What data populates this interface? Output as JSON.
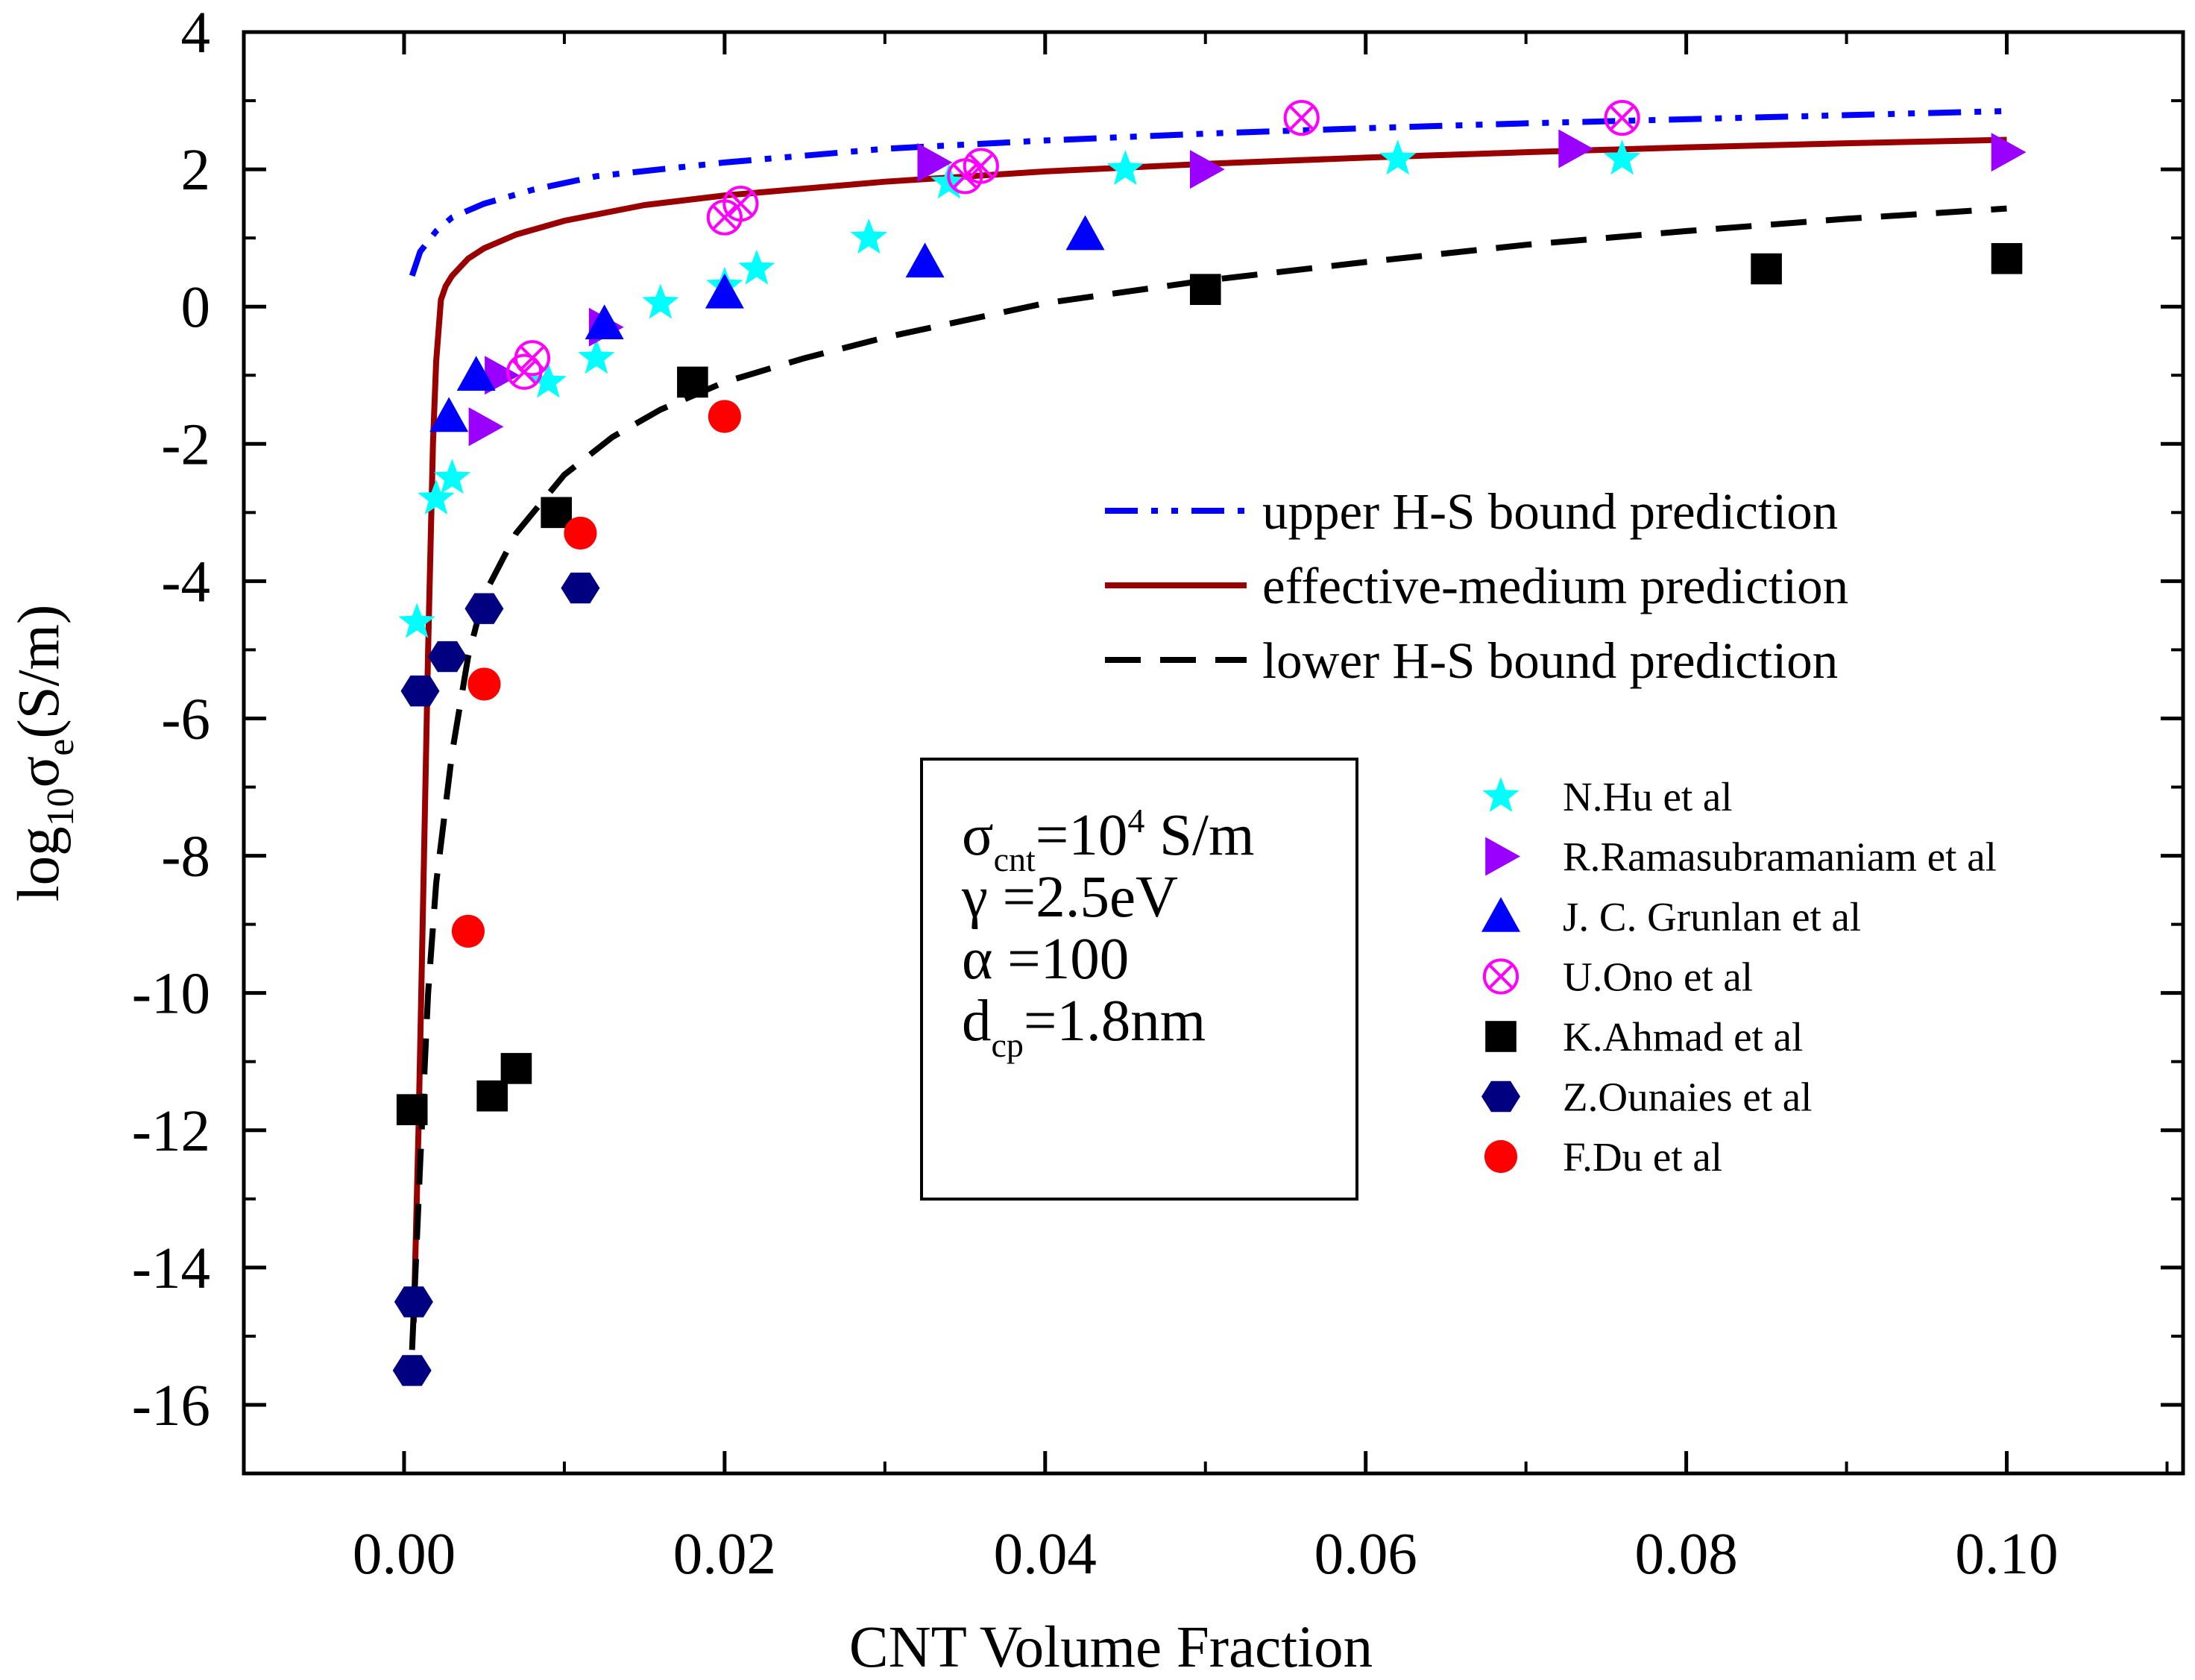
{
  "chart_data": {
    "type": "scatter",
    "xlabel": "CNT Volume Fraction",
    "ylabel_parts": {
      "base": "log",
      "base_sub": "10",
      "sym": "σ",
      "sym_sub": "e",
      "unit": "(S/m)"
    },
    "xlim": [
      -0.01,
      0.111
    ],
    "ylim": [
      -17,
      4
    ],
    "x_ticks": [
      0.0,
      0.02,
      0.04,
      0.06,
      0.08,
      0.1
    ],
    "x_tick_labels": [
      "0.00",
      "0.02",
      "0.04",
      "0.06",
      "0.08",
      "0.10"
    ],
    "y_ticks": [
      -16,
      -14,
      -12,
      -10,
      -8,
      -6,
      -4,
      -2,
      0,
      2,
      4
    ],
    "y_tick_labels": [
      "-16",
      "-14",
      "-12",
      "-10",
      "-8",
      "-6",
      "-4",
      "-2",
      "0",
      "2",
      "4"
    ],
    "lines": [
      {
        "name": "upper H-S bound prediction",
        "color": "#0000ff",
        "style": "dashdotdot",
        "x": [
          0.0005,
          0.001,
          0.002,
          0.003,
          0.005,
          0.008,
          0.012,
          0.02,
          0.03,
          0.04,
          0.05,
          0.06,
          0.07,
          0.08,
          0.09,
          0.1
        ],
        "y": [
          0.45,
          0.8,
          1.1,
          1.3,
          1.5,
          1.7,
          1.9,
          2.1,
          2.3,
          2.42,
          2.52,
          2.6,
          2.67,
          2.73,
          2.79,
          2.85
        ]
      },
      {
        "name": "effective-medium prediction",
        "color": "#990000",
        "style": "solid",
        "x": [
          0.0006,
          0.0009,
          0.0012,
          0.0015,
          0.0018,
          0.002,
          0.0023,
          0.0026,
          0.003,
          0.004,
          0.005,
          0.007,
          0.01,
          0.015,
          0.02,
          0.03,
          0.04,
          0.05,
          0.06,
          0.07,
          0.08,
          0.09,
          0.1
        ],
        "y": [
          -14.8,
          -12.0,
          -8.5,
          -5.0,
          -2.0,
          -0.8,
          0.1,
          0.3,
          0.45,
          0.7,
          0.85,
          1.05,
          1.25,
          1.48,
          1.62,
          1.82,
          1.97,
          2.08,
          2.17,
          2.25,
          2.32,
          2.38,
          2.43
        ]
      },
      {
        "name": "lower H-S bound prediction",
        "color": "#000000",
        "style": "dashed",
        "x": [
          0.0005,
          0.001,
          0.0015,
          0.002,
          0.003,
          0.004,
          0.005,
          0.007,
          0.01,
          0.013,
          0.016,
          0.02,
          0.025,
          0.03,
          0.04,
          0.05,
          0.06,
          0.07,
          0.08,
          0.09,
          0.1
        ],
        "y": [
          -15.2,
          -12.5,
          -10.0,
          -8.4,
          -6.5,
          -5.1,
          -4.2,
          -3.3,
          -2.45,
          -1.9,
          -1.5,
          -1.1,
          -0.75,
          -0.45,
          0.05,
          0.38,
          0.65,
          0.9,
          1.1,
          1.28,
          1.43
        ]
      }
    ],
    "series": [
      {
        "name": "N.Hu et al",
        "marker": "star",
        "color": "#00ffff",
        "x": [
          0.0008,
          0.002,
          0.003,
          0.009,
          0.012,
          0.016,
          0.02,
          0.022,
          0.029,
          0.034,
          0.045,
          0.062,
          0.076
        ],
        "y": [
          -4.6,
          -2.8,
          -2.5,
          -1.1,
          -0.75,
          0.05,
          0.3,
          0.55,
          1.0,
          1.8,
          2.0,
          2.15,
          2.15
        ]
      },
      {
        "name": "R.Ramasubramaniam et al",
        "marker": "triangle-right",
        "color": "#9900ff",
        "x": [
          0.005,
          0.006,
          0.0125,
          0.033,
          0.05,
          0.073,
          0.1
        ],
        "y": [
          -1.75,
          -1.0,
          -0.3,
          2.1,
          2.0,
          2.3,
          2.25
        ]
      },
      {
        "name": "J. C. Grunlan et al",
        "marker": "triangle-up",
        "color": "#0000ff",
        "x": [
          0.0028,
          0.0045,
          0.0125,
          0.02,
          0.0325,
          0.0425
        ],
        "y": [
          -1.6,
          -1.0,
          -0.25,
          0.2,
          0.65,
          1.05
        ]
      },
      {
        "name": "U.Ono et al",
        "marker": "circle-x",
        "color": "#ff00ff",
        "x": [
          0.0075,
          0.008,
          0.02,
          0.021,
          0.035,
          0.036,
          0.056,
          0.076
        ],
        "y": [
          -0.95,
          -0.75,
          1.3,
          1.5,
          1.9,
          2.05,
          2.75,
          2.75
        ]
      },
      {
        "name": "K.Ahmad et al",
        "marker": "square",
        "color": "#000000",
        "x": [
          0.0005,
          0.0055,
          0.007,
          0.0095,
          0.018,
          0.05,
          0.085,
          0.1
        ],
        "y": [
          -11.7,
          -11.5,
          -11.1,
          -3.0,
          -1.1,
          0.25,
          0.55,
          0.7
        ]
      },
      {
        "name": "Z.Ounaies et al",
        "marker": "hexagon",
        "color": "#000080",
        "x": [
          0.0005,
          0.0006,
          0.001,
          0.0027,
          0.005,
          0.011
        ],
        "y": [
          -15.5,
          -14.5,
          -5.6,
          -5.1,
          -4.4,
          -4.1
        ]
      },
      {
        "name": "F.Du et al",
        "marker": "circle",
        "color": "#ff0000",
        "x": [
          0.004,
          0.005,
          0.011,
          0.02
        ],
        "y": [
          -9.1,
          -5.5,
          -3.3,
          -1.6
        ]
      }
    ],
    "params": [
      {
        "sym": "σ",
        "sub": "cnt",
        "eq": "=10",
        "sup": "4",
        "rest": " S/m"
      },
      {
        "sym": "γ",
        "sub": "",
        "eq": " =2.5eV",
        "sup": "",
        "rest": ""
      },
      {
        "sym": "α",
        "sub": "",
        "eq": " =100",
        "sup": "",
        "rest": ""
      },
      {
        "sym": "d",
        "sub": "cp",
        "eq": "=1.8nm",
        "sup": "",
        "rest": ""
      }
    ]
  }
}
